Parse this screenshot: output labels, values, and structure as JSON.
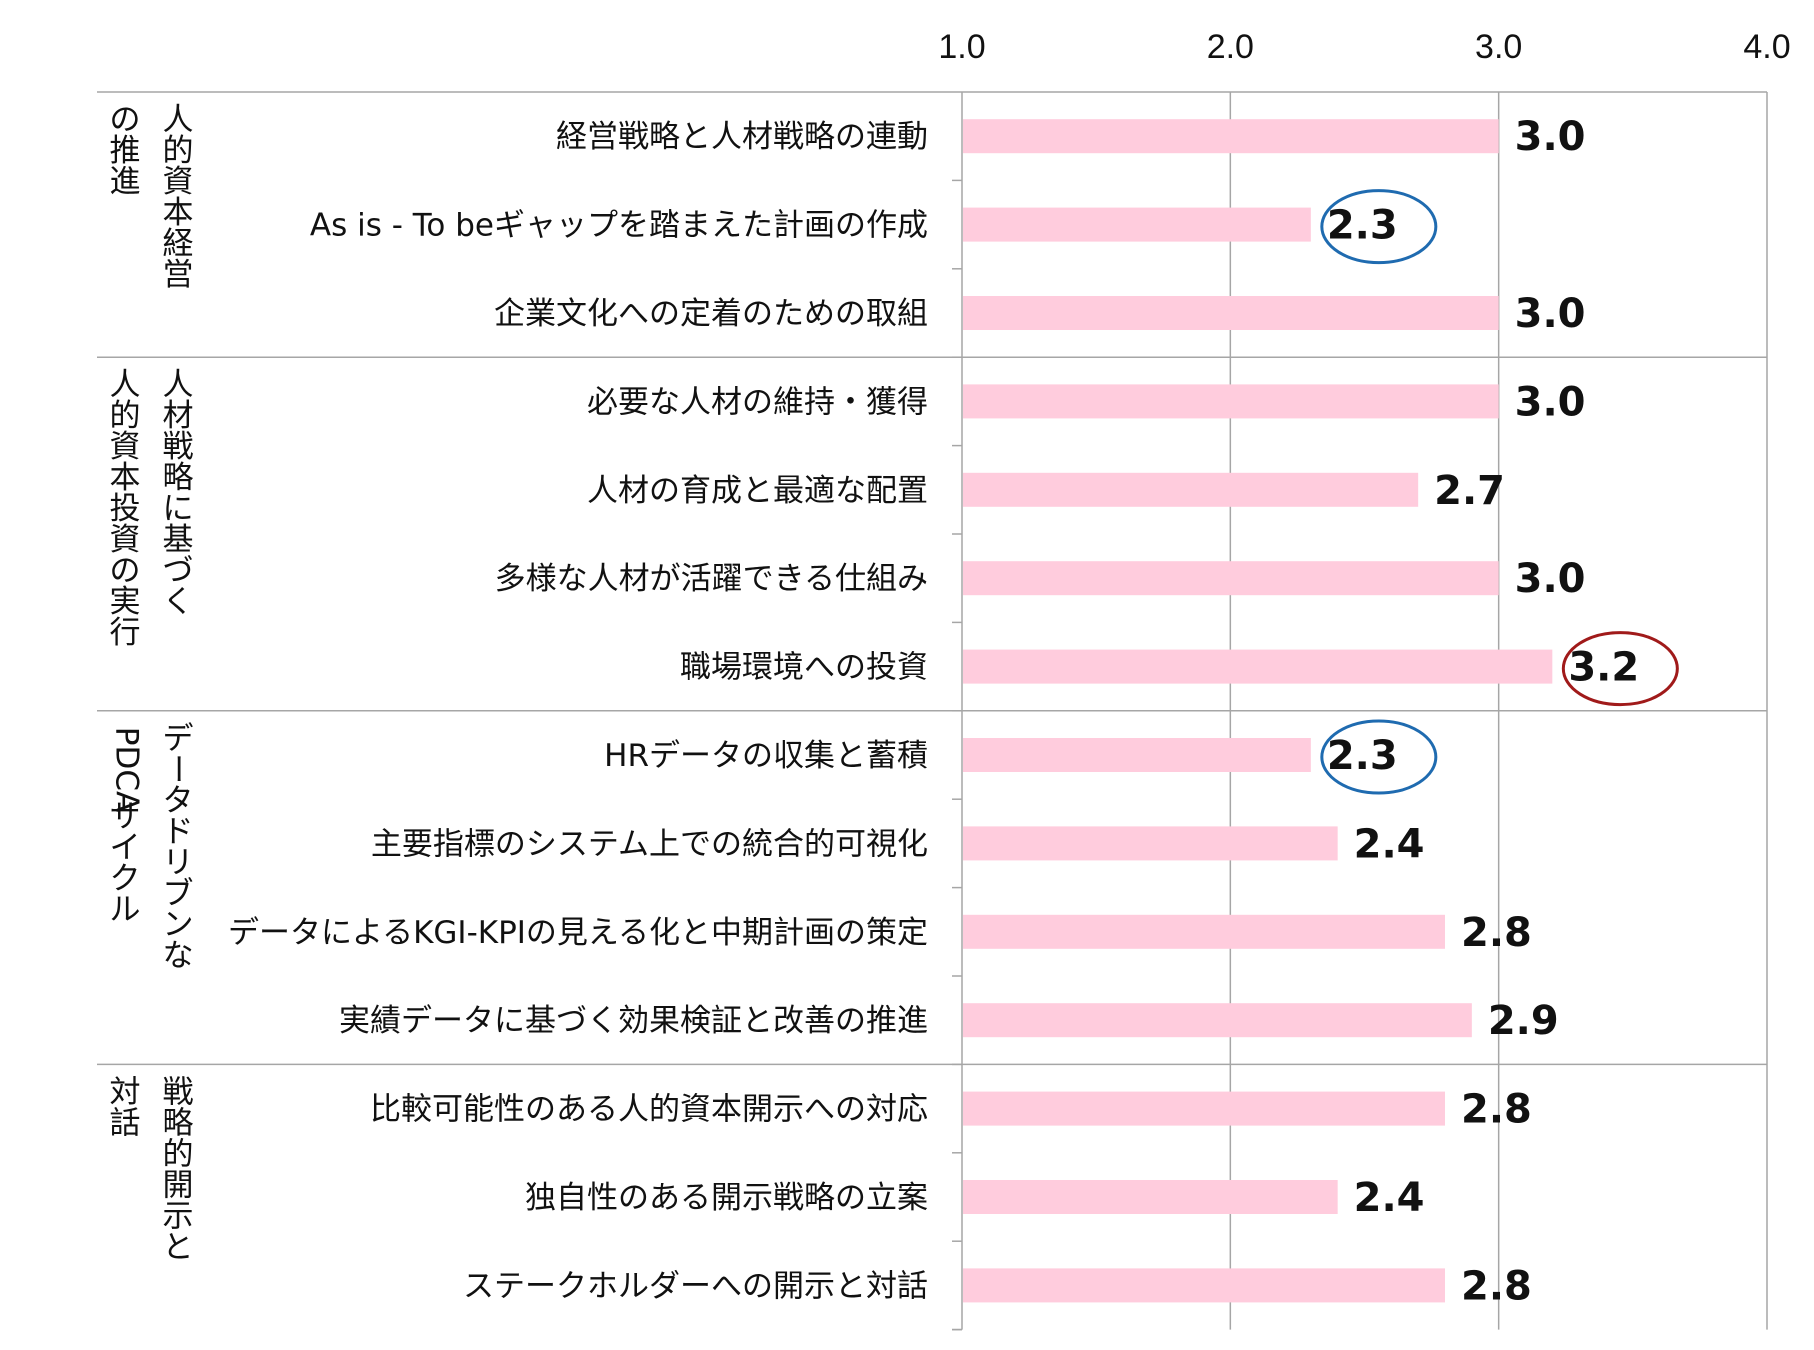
{
  "chart_data": {
    "type": "bar",
    "orientation": "horizontal",
    "xlim": [
      1.0,
      4.0
    ],
    "ticks": [
      "1.0",
      "2.0",
      "3.0",
      "4.0"
    ],
    "colors": {
      "bar": "#ffccdd",
      "highlight_low": "#1f6bb0",
      "highlight_high": "#a01a1a"
    },
    "groups": [
      {
        "label_lines": [
          "人的資本経営",
          "の推進"
        ],
        "items": [
          {
            "category": "経営戦略と人材戦略の連動",
            "value": 3.0,
            "label": "3.0",
            "highlight": "none"
          },
          {
            "category": "As is - To beギャップを踏まえた計画の作成",
            "value": 2.3,
            "label": "2.3",
            "highlight": "low"
          },
          {
            "category": "企業文化への定着のための取組",
            "value": 3.0,
            "label": "3.0",
            "highlight": "none"
          }
        ]
      },
      {
        "label_lines": [
          "人材戦略に基づく",
          "人的資本投資の実行"
        ],
        "items": [
          {
            "category": "必要な人材の維持・獲得",
            "value": 3.0,
            "label": "3.0",
            "highlight": "none"
          },
          {
            "category": "人材の育成と最適な配置",
            "value": 2.7,
            "label": "2.7",
            "highlight": "none"
          },
          {
            "category": "多様な人材が活躍できる仕組み",
            "value": 3.0,
            "label": "3.0",
            "highlight": "none"
          },
          {
            "category": "職場環境への投資",
            "value": 3.2,
            "label": "3.2",
            "highlight": "high"
          }
        ]
      },
      {
        "label_lines": [
          "データドリブンな",
          "PDCAサイクル"
        ],
        "items": [
          {
            "category": "HRデータの収集と蓄積",
            "value": 2.3,
            "label": "2.3",
            "highlight": "low"
          },
          {
            "category": "主要指標のシステム上での統合的可視化",
            "value": 2.4,
            "label": "2.4",
            "highlight": "none"
          },
          {
            "category": "データによるKGI-KPIの見える化と中期計画の策定",
            "value": 2.8,
            "label": "2.8",
            "highlight": "none"
          },
          {
            "category": "実績データに基づく効果検証と改善の推進",
            "value": 2.9,
            "label": "2.9",
            "highlight": "none"
          }
        ]
      },
      {
        "label_lines": [
          "戦略的開示と",
          "対話"
        ],
        "items": [
          {
            "category": "比較可能性のある人的資本開示への対応",
            "value": 2.8,
            "label": "2.8",
            "highlight": "none"
          },
          {
            "category": "独自性のある開示戦略の立案",
            "value": 2.4,
            "label": "2.4",
            "highlight": "none"
          },
          {
            "category": "ステークホルダーへの開示と対話",
            "value": 2.8,
            "label": "2.8",
            "highlight": "none"
          }
        ]
      }
    ]
  }
}
